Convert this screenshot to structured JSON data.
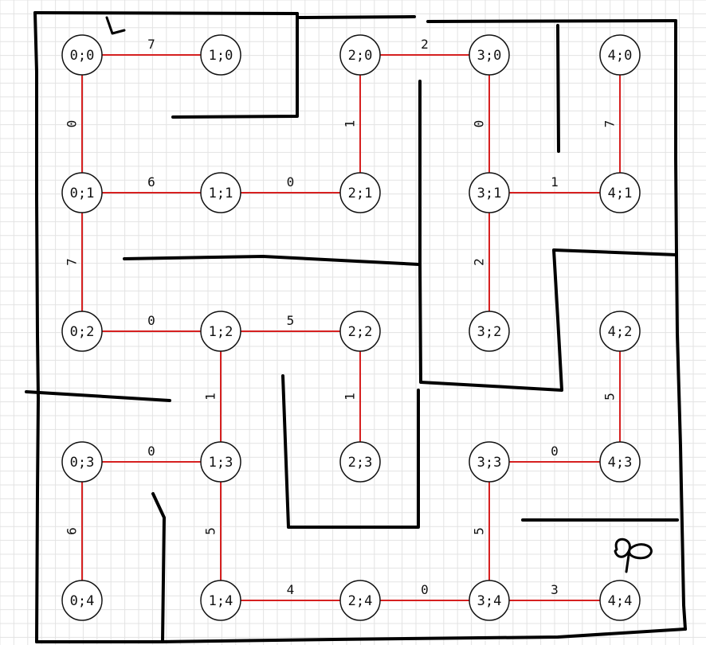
{
  "colors": {
    "grid": "#e3e3e3",
    "wall": "#000000",
    "edge": "#d62020",
    "node_fill": "#ffffff",
    "node_stroke": "#111111"
  },
  "nodes": [
    {
      "id": "0;0",
      "label": "0;0"
    },
    {
      "id": "1;0",
      "label": "1;0"
    },
    {
      "id": "2;0",
      "label": "2;0"
    },
    {
      "id": "3;0",
      "label": "3;0"
    },
    {
      "id": "4;0",
      "label": "4;0"
    },
    {
      "id": "0;1",
      "label": "0;1"
    },
    {
      "id": "1;1",
      "label": "1;1"
    },
    {
      "id": "2;1",
      "label": "2;1"
    },
    {
      "id": "3;1",
      "label": "3;1"
    },
    {
      "id": "4;1",
      "label": "4;1"
    },
    {
      "id": "0;2",
      "label": "0;2"
    },
    {
      "id": "1;2",
      "label": "1;2"
    },
    {
      "id": "2;2",
      "label": "2;2"
    },
    {
      "id": "3;2",
      "label": "3;2"
    },
    {
      "id": "4;2",
      "label": "4;2"
    },
    {
      "id": "0;3",
      "label": "0;3"
    },
    {
      "id": "1;3",
      "label": "1;3"
    },
    {
      "id": "2;3",
      "label": "2;3"
    },
    {
      "id": "3;3",
      "label": "3;3"
    },
    {
      "id": "4;3",
      "label": "4;3"
    },
    {
      "id": "0;4",
      "label": "0;4"
    },
    {
      "id": "1;4",
      "label": "1;4"
    },
    {
      "id": "2;4",
      "label": "2;4"
    },
    {
      "id": "3;4",
      "label": "3;4"
    },
    {
      "id": "4;4",
      "label": "4;4"
    }
  ],
  "edges": [
    {
      "from": "0;0",
      "to": "1;0",
      "weight": "7"
    },
    {
      "from": "2;0",
      "to": "3;0",
      "weight": "2"
    },
    {
      "from": "0;1",
      "to": "1;1",
      "weight": "6"
    },
    {
      "from": "1;1",
      "to": "2;1",
      "weight": "0"
    },
    {
      "from": "3;1",
      "to": "4;1",
      "weight": "1"
    },
    {
      "from": "0;2",
      "to": "1;2",
      "weight": "0"
    },
    {
      "from": "1;2",
      "to": "2;2",
      "weight": "5"
    },
    {
      "from": "0;3",
      "to": "1;3",
      "weight": "0"
    },
    {
      "from": "3;3",
      "to": "4;3",
      "weight": "0"
    },
    {
      "from": "1;4",
      "to": "2;4",
      "weight": "4"
    },
    {
      "from": "2;4",
      "to": "3;4",
      "weight": "0"
    },
    {
      "from": "3;4",
      "to": "4;4",
      "weight": "3"
    },
    {
      "from": "0;0",
      "to": "0;1",
      "weight": "0"
    },
    {
      "from": "0;1",
      "to": "0;2",
      "weight": "7"
    },
    {
      "from": "0;3",
      "to": "0;4",
      "weight": "6"
    },
    {
      "from": "1;2",
      "to": "1;3",
      "weight": "1"
    },
    {
      "from": "1;3",
      "to": "1;4",
      "weight": "5"
    },
    {
      "from": "2;0",
      "to": "2;1",
      "weight": "1"
    },
    {
      "from": "2;2",
      "to": "2;3",
      "weight": "1"
    },
    {
      "from": "3;0",
      "to": "3;1",
      "weight": "0"
    },
    {
      "from": "3;1",
      "to": "3;2",
      "weight": "2"
    },
    {
      "from": "3;3",
      "to": "3;4",
      "weight": "5"
    },
    {
      "from": "4;0",
      "to": "4;1",
      "weight": "7"
    },
    {
      "from": "4;2",
      "to": "4;3",
      "weight": "5"
    }
  ]
}
